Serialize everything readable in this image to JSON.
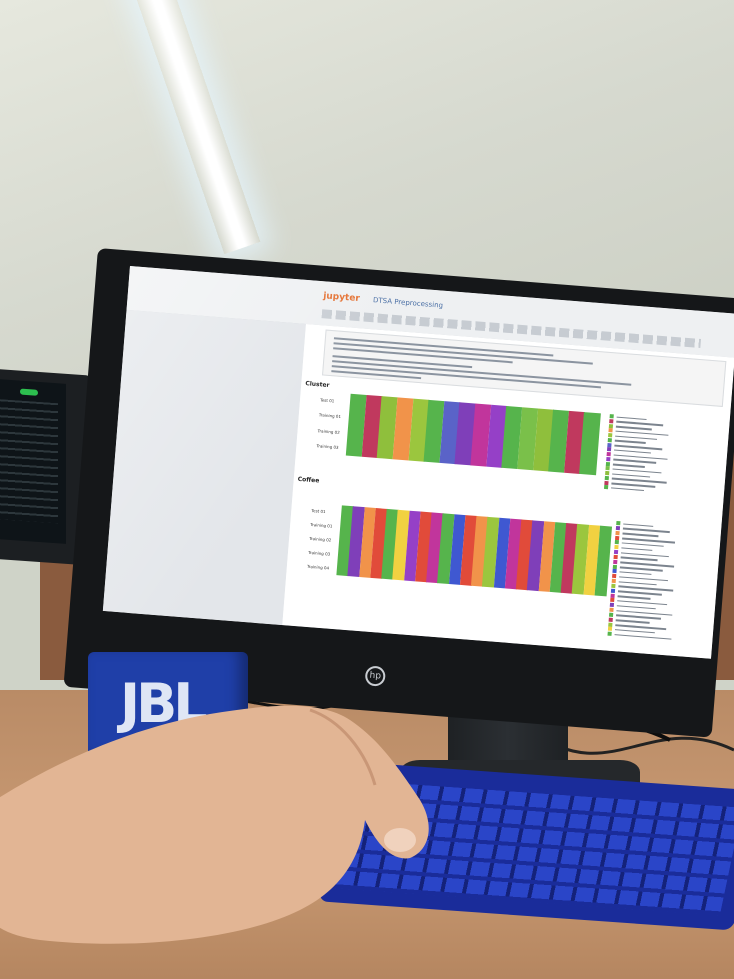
{
  "laptop_screen": {
    "status_color": "#2dbf4f"
  },
  "monitor": {
    "brand_logo_text": "hp"
  },
  "notebook": {
    "app_name": "jupyter",
    "title": "DTSA Preprocessing",
    "sections": [
      "Cluster",
      "Coffee"
    ]
  },
  "chart1": {
    "rows": [
      "Test 01",
      "Training 01",
      "Training 02",
      "Training 03"
    ],
    "band_colors": [
      "#56b44c",
      "#c0395e",
      "#8fbf3c",
      "#f1934a",
      "#9bc63e",
      "#56b44c",
      "#5a63c8",
      "#7f3fb9",
      "#c1359c",
      "#9540c7",
      "#56b44c",
      "#7ac04a",
      "#8fbf3c",
      "#56b44c",
      "#c0395e",
      "#56b44c"
    ]
  },
  "chart2": {
    "rows": [
      "Test 01",
      "Training 01",
      "Training 02",
      "Training 03",
      "Training 04"
    ],
    "band_colors": [
      "#56b44c",
      "#7f3fb9",
      "#f1934a",
      "#e14b3a",
      "#56b44c",
      "#f1d141",
      "#9540c7",
      "#e14b3a",
      "#c1359c",
      "#56b44c",
      "#3f58d1",
      "#e14b3a",
      "#f1934a",
      "#9bc63e",
      "#3f58d1",
      "#c1359c",
      "#e14b3a",
      "#7f3fb9",
      "#f1934a",
      "#56b44c",
      "#c0395e",
      "#9bc63e",
      "#f1d141",
      "#56b44c"
    ]
  },
  "desk_items": {
    "speaker_brand": "JBL"
  }
}
